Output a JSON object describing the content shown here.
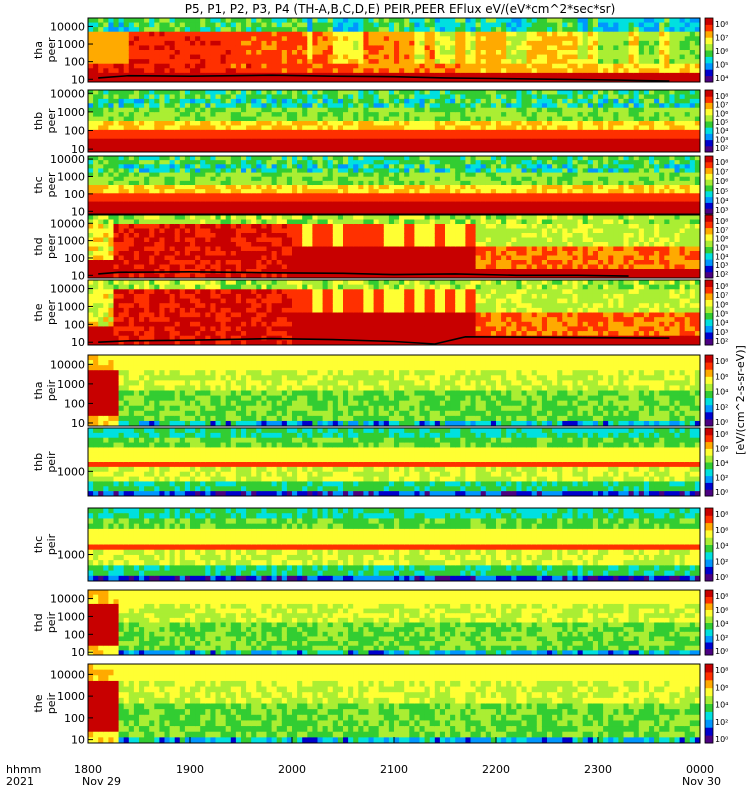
{
  "chart_data": {
    "type": "heatmap",
    "title": "P5, P1, P2, P3, P4 (TH-A,B,C,D,E) PEIR,PEER EFlux eV/(eV*cm^2*sec*sr)",
    "colorbar_title": "[eV/(cm^2-s-sr-eV)]",
    "y_scale": "log",
    "x_axis": {
      "ticks": [
        "1800",
        "1900",
        "2000",
        "2100",
        "2200",
        "2300",
        "0000"
      ],
      "tick_hours": [
        18,
        19,
        20,
        21,
        22,
        23,
        24
      ],
      "range_hours": [
        18,
        24
      ],
      "corner_label_line1": "hhmm",
      "corner_label_line2": "2021",
      "date_start": "Nov 29",
      "date_end": "Nov 30"
    },
    "colorscale": [
      "#4b0082",
      "#0000cd",
      "#0096ff",
      "#00e0e0",
      "#32cd32",
      "#aaee33",
      "#ffff33",
      "#ffaa00",
      "#ff3000",
      "#c80000"
    ],
    "panels": [
      {
        "id": "tha_peer",
        "label1": "tha",
        "label2": "peer",
        "ylim": [
          7,
          30000
        ],
        "yticks": [
          "10000",
          "1000",
          "100",
          "10"
        ],
        "ytick_values": [
          10000,
          1000,
          100,
          10
        ],
        "cbar_ticks": [
          "10⁸",
          "10⁷",
          "10⁶",
          "10⁵",
          "10⁴"
        ],
        "scp_hours": [
          18.1,
          18.4,
          19.0,
          19.8,
          20.4,
          21.0,
          21.5,
          22.0,
          22.6,
          23.2,
          23.7
        ],
        "scp_ev": [
          12,
          16,
          15,
          17,
          15,
          14,
          12,
          11,
          10,
          9,
          8
        ]
      },
      {
        "id": "thb_peer",
        "label1": "thb",
        "label2": "peer",
        "ylim": [
          7,
          15000
        ],
        "yticks": [
          "10000",
          "1000",
          "100",
          "10"
        ],
        "ytick_values": [
          10000,
          1000,
          100,
          10
        ],
        "cbar_ticks": [
          "10⁸",
          "10⁷",
          "10⁶",
          "10⁵",
          "10⁴",
          "10³",
          "10²"
        ],
        "scp_hours": [],
        "scp_ev": []
      },
      {
        "id": "thc_peer",
        "label1": "thc",
        "label2": "peer",
        "ylim": [
          7,
          15000
        ],
        "yticks": [
          "10000",
          "1000",
          "100",
          "10"
        ],
        "ytick_values": [
          10000,
          1000,
          100,
          10
        ],
        "cbar_ticks": [
          "10⁸",
          "10⁷",
          "10⁶",
          "10⁵",
          "10⁴",
          "10³"
        ],
        "scp_hours": [],
        "scp_ev": []
      },
      {
        "id": "thd_peer",
        "label1": "thd",
        "label2": "peer",
        "ylim": [
          7,
          30000
        ],
        "yticks": [
          "10000",
          "1000",
          "100",
          "10"
        ],
        "ytick_values": [
          10000,
          1000,
          100,
          10
        ],
        "cbar_ticks": [
          "10⁸",
          "10⁷",
          "10⁶",
          "10⁵",
          "10⁴",
          "10³",
          "10²"
        ],
        "scp_hours": [
          18.1,
          18.3,
          19.0,
          19.8,
          20.5,
          21.0,
          21.6,
          22.2,
          22.8,
          23.3
        ],
        "scp_ev": [
          12,
          15,
          16,
          14,
          13,
          11,
          12,
          10,
          10,
          9
        ]
      },
      {
        "id": "the_peer",
        "label1": "the",
        "label2": "peer",
        "ylim": [
          7,
          30000
        ],
        "yticks": [
          "10000",
          "1000",
          "100",
          "10"
        ],
        "ytick_values": [
          10000,
          1000,
          100,
          10
        ],
        "cbar_ticks": [
          "10⁸",
          "10⁷",
          "10⁶",
          "10⁵",
          "10⁴",
          "10³",
          "10²"
        ],
        "scp_hours": [
          18.1,
          18.4,
          19.0,
          19.8,
          20.4,
          21.0,
          21.4,
          21.7,
          22.3,
          23.0,
          23.7
        ],
        "scp_ev": [
          10,
          12,
          13,
          16,
          14,
          11,
          8,
          20,
          19,
          18,
          17
        ]
      },
      {
        "id": "tha_peir",
        "label1": "tha",
        "label2": "peir",
        "ylim": [
          7,
          30000
        ],
        "yticks": [
          "10000",
          "1000",
          "100",
          "10"
        ],
        "ytick_values": [
          10000,
          1000,
          100,
          10
        ],
        "cbar_ticks": [
          "10⁸",
          "10⁶",
          "10⁴",
          "10²",
          "10⁰"
        ],
        "scp_hours": [],
        "scp_ev": []
      },
      {
        "id": "thb_peir",
        "label1": "thb",
        "label2": "peir",
        "ylim": [
          400,
          5000
        ],
        "yticks": [
          "1000"
        ],
        "ytick_values": [
          1000
        ],
        "cbar_ticks": [
          "10⁸",
          "10⁶",
          "10⁴",
          "10²",
          "10⁰"
        ],
        "scp_hours": [],
        "scp_ev": []
      },
      {
        "id": "thc_peir",
        "label1": "thc",
        "label2": "peir",
        "ylim": [
          400,
          5000
        ],
        "yticks": [
          "1000"
        ],
        "ytick_values": [
          1000
        ],
        "cbar_ticks": [
          "10⁸",
          "10⁶",
          "10⁴",
          "10²",
          "10⁰"
        ],
        "scp_hours": [],
        "scp_ev": []
      },
      {
        "id": "thd_peir",
        "label1": "thd",
        "label2": "peir",
        "ylim": [
          7,
          30000
        ],
        "yticks": [
          "10000",
          "1000",
          "100",
          "10"
        ],
        "ytick_values": [
          10000,
          1000,
          100,
          10
        ],
        "cbar_ticks": [
          "10⁸",
          "10⁶",
          "10⁴",
          "10²",
          "10⁰"
        ],
        "scp_hours": [],
        "scp_ev": []
      },
      {
        "id": "the_peir",
        "label1": "the",
        "label2": "peir",
        "ylim": [
          7,
          30000
        ],
        "yticks": [
          "10000",
          "1000",
          "100",
          "10"
        ],
        "ytick_values": [
          10000,
          1000,
          100,
          10
        ],
        "cbar_ticks": [
          "10⁸",
          "10⁶",
          "10⁴",
          "10²",
          "10⁰"
        ],
        "scp_hours": [],
        "scp_ev": []
      }
    ],
    "grid": false,
    "legend": "right colorbars"
  }
}
